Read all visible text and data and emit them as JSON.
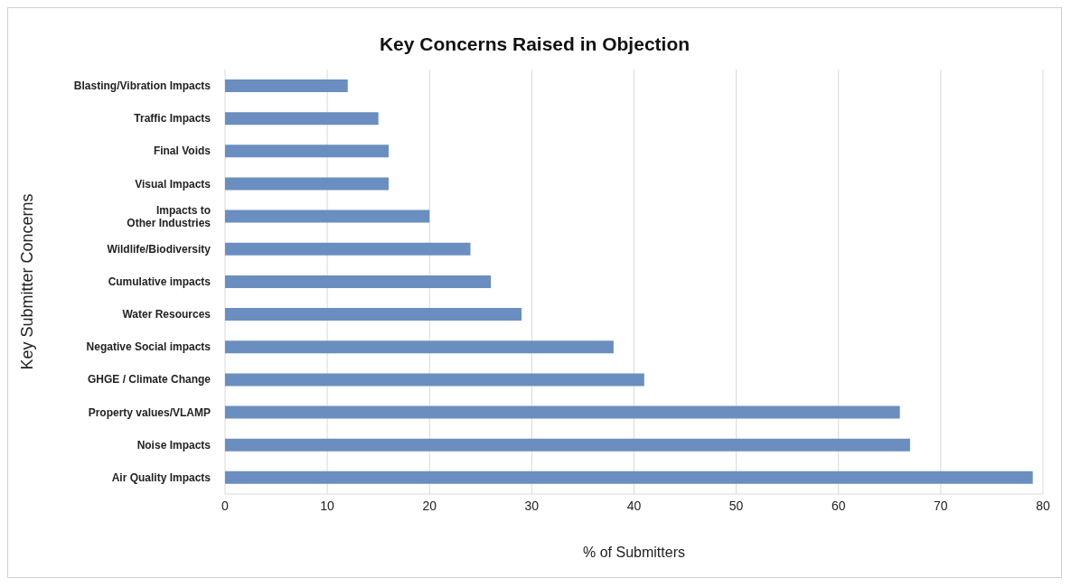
{
  "chart_data": {
    "type": "bar",
    "orientation": "horizontal",
    "title": "Key Concerns Raised in Objection",
    "xlabel": "% of Submitters",
    "ylabel": "Key Submitter Concerns",
    "categories": [
      "Blasting/Vibration Impacts",
      "Traffic Impacts",
      "Final Voids",
      "Visual Impacts",
      "Impacts to\nOther Industries",
      "Wildlife/Biodiversity",
      "Cumulative impacts",
      "Water Resources",
      "Negative Social impacts",
      "GHGE / Climate Change",
      "Property values/VLAMP",
      "Noise Impacts",
      "Air Quality Impacts"
    ],
    "values": [
      12,
      15,
      16,
      16,
      20,
      24,
      26,
      29,
      38,
      41,
      66,
      67,
      79
    ],
    "color": "#6a8ebf",
    "xlim": [
      0,
      80
    ],
    "xticks": [
      0,
      10,
      20,
      30,
      40,
      50,
      60,
      70,
      80
    ],
    "grid": "x"
  }
}
